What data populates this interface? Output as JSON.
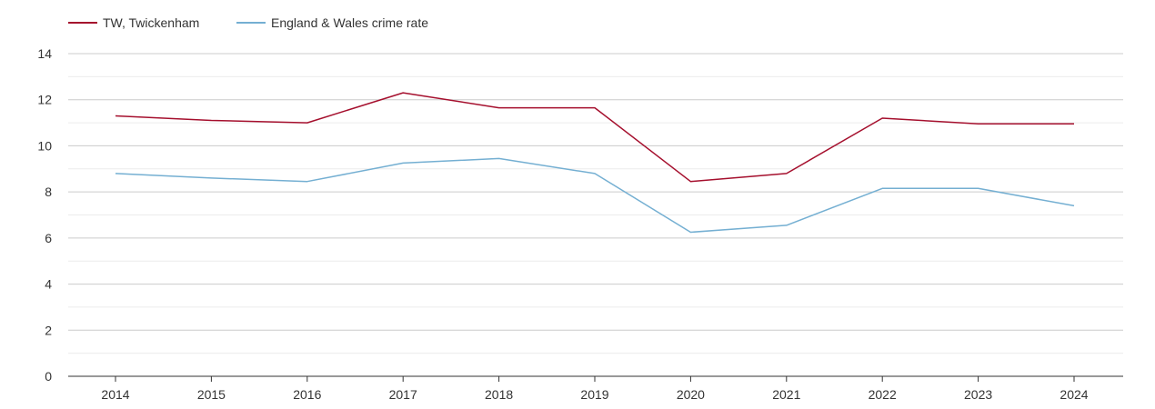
{
  "chart_data": {
    "type": "line",
    "categories": [
      "2014",
      "2015",
      "2016",
      "2017",
      "2018",
      "2019",
      "2020",
      "2021",
      "2022",
      "2023",
      "2024"
    ],
    "series": [
      {
        "name": "TW, Twickenham",
        "color": "#a50f2d",
        "values": [
          11.3,
          11.1,
          11.0,
          12.3,
          11.65,
          11.65,
          8.45,
          8.8,
          11.2,
          10.95,
          10.95
        ]
      },
      {
        "name": "England & Wales crime rate",
        "color": "#74afd2",
        "values": [
          8.8,
          8.6,
          8.45,
          9.25,
          9.45,
          8.8,
          6.25,
          6.55,
          8.15,
          8.15,
          7.4
        ]
      }
    ],
    "ylim": [
      0,
      14
    ],
    "yticks": [
      "0",
      "2",
      "4",
      "6",
      "8",
      "10",
      "12",
      "14"
    ],
    "grid": true,
    "legend_position": "top-left"
  }
}
